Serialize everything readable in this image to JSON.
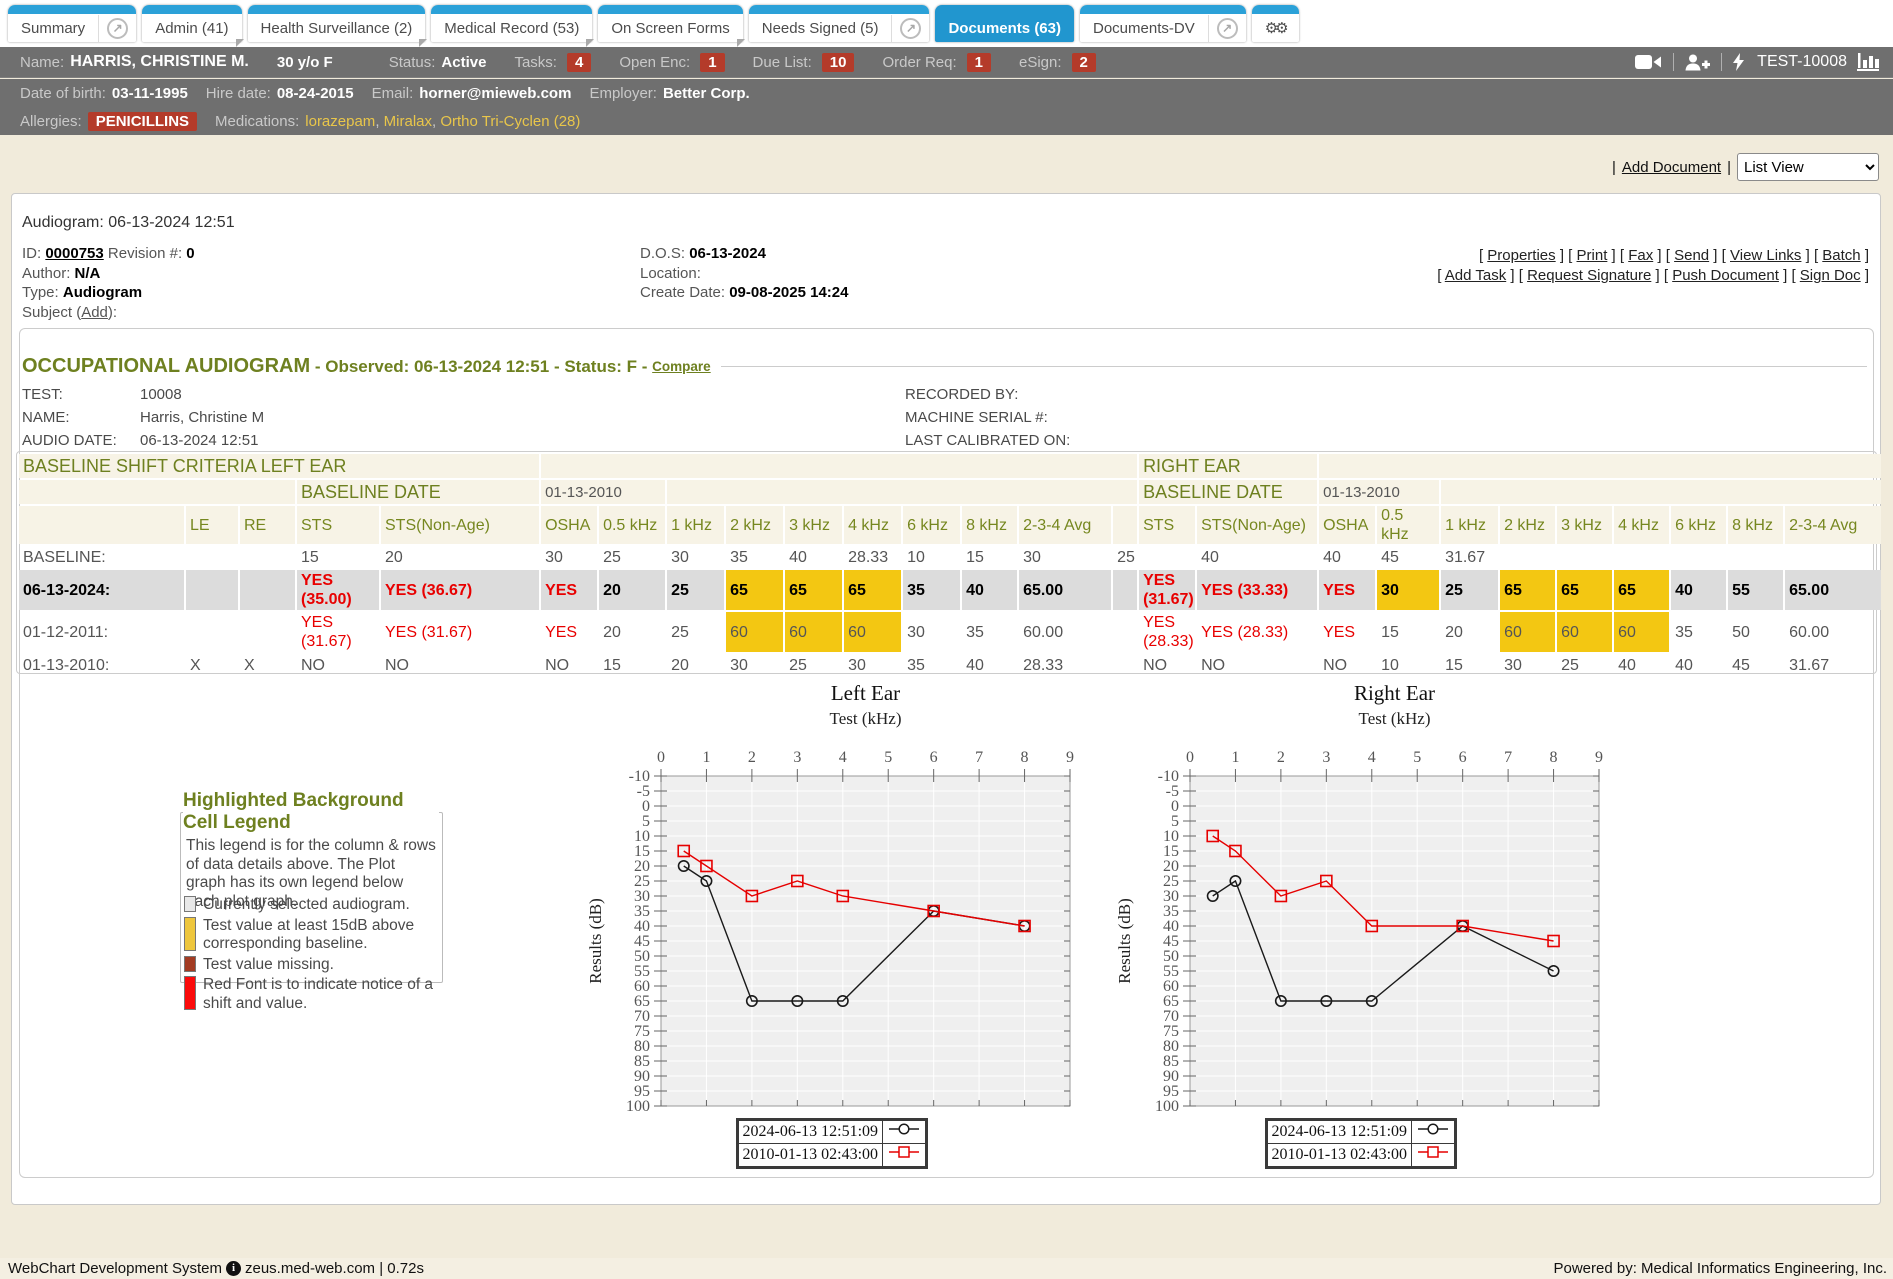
{
  "tabs": {
    "items": [
      {
        "label": "Summary",
        "popout": true,
        "fold": false,
        "selected": false
      },
      {
        "label": "Admin (41)",
        "popout": false,
        "fold": true,
        "selected": false
      },
      {
        "label": "Health Surveillance (2)",
        "popout": false,
        "fold": true,
        "selected": false
      },
      {
        "label": "Medical Record (53)",
        "popout": false,
        "fold": true,
        "selected": false
      },
      {
        "label": "On Screen Forms",
        "popout": false,
        "fold": true,
        "selected": false
      },
      {
        "label": "Needs Signed (5)",
        "popout": true,
        "fold": false,
        "selected": false
      },
      {
        "label": "Documents (63)",
        "popout": false,
        "fold": false,
        "selected": true
      },
      {
        "label": "Documents-DV",
        "popout": true,
        "fold": false,
        "selected": false
      }
    ]
  },
  "patient_bar": {
    "name_label": "Name:",
    "name": "HARRIS, CHRISTINE M.",
    "age_sex": "30 y/o F",
    "status_label": "Status:",
    "status": "Active",
    "counters": [
      {
        "label": "Tasks:",
        "value": "4"
      },
      {
        "label": "Open Enc:",
        "value": "1"
      },
      {
        "label": "Due List:",
        "value": "10"
      },
      {
        "label": "Order Req:",
        "value": "1"
      },
      {
        "label": "eSign:",
        "value": "2"
      }
    ],
    "patient_id": "TEST-10008",
    "dob_label": "Date of birth:",
    "dob": "03-11-1995",
    "hire_label": "Hire date:",
    "hire_date": "08-24-2015",
    "email_label": "Email:",
    "email": "horner@mieweb.com",
    "employer_label": "Employer:",
    "employer": "Better Corp.",
    "allergies_label": "Allergies:",
    "allergy": "PENICILLINS",
    "medications_label": "Medications:",
    "medications": [
      "lorazepam",
      "Miralax",
      "Ortho Tri-Cyclen (28)"
    ]
  },
  "toolbar": {
    "add_document": "Add Document",
    "view_select": "List View"
  },
  "document": {
    "title": "Audiogram: 06-13-2024 12:51",
    "id_label": "ID:",
    "id": "0000753",
    "revision_label": "Revision #:",
    "revision": "0",
    "author_label": "Author:",
    "author": "N/A",
    "type_label": "Type:",
    "type": "Audiogram",
    "subject_pre": "Subject (",
    "subject_add": "Add",
    "subject_post": "):",
    "dos_label": "D.O.S:",
    "dos": "06-13-2024",
    "location_label": "Location:",
    "create_label": "Create Date:",
    "create_date": "09-08-2025 14:24",
    "actions_row1": [
      "Properties",
      "Print",
      "Fax",
      "Send",
      "View Links",
      "Batch"
    ],
    "actions_row2": [
      "Add Task",
      "Request Signature",
      "Push Document",
      "Sign Doc"
    ]
  },
  "audiogram": {
    "heading_main": "OCCUPATIONAL AUDIOGRAM",
    "heading_rest": " - Observed: 06-13-2024 12:51 - Status: F - ",
    "compare": "Compare",
    "info": [
      {
        "label": "TEST:",
        "value": "10008"
      },
      {
        "label": "NAME:",
        "value": "Harris, Christine M"
      },
      {
        "label": "AUDIO DATE:",
        "value": "06-13-2024 12:51"
      }
    ],
    "info_right": [
      "RECORDED BY:",
      "MACHINE SERIAL #:",
      "LAST CALIBRATED ON:"
    ]
  },
  "shift_table": {
    "columns": [
      "",
      "LE",
      "RE",
      "STS",
      "STS(Non-Age)",
      "OSHA",
      "0.5 kHz",
      "1 kHz",
      "2 kHz",
      "3 kHz",
      "4 kHz",
      "6 kHz",
      "8 kHz",
      "2-3-4 Avg",
      "",
      "STS",
      "STS(Non-Age)",
      "OSHA",
      "0.5 kHz",
      "1 kHz",
      "2 kHz",
      "3 kHz",
      "4 kHz",
      "6 kHz",
      "8 kHz",
      "2-3-4 Avg"
    ],
    "section_row": [
      {
        "t": "BASELINE SHIFT CRITERIA LEFT EAR",
        "span": 5
      },
      {
        "t": "",
        "span": 10
      },
      {
        "t": "RIGHT EAR",
        "span": 2
      },
      {
        "t": "",
        "span": 9
      }
    ],
    "subsection_row": [
      {
        "t": "",
        "span": 3
      },
      {
        "t": "BASELINE DATE",
        "span": 2,
        "cls": "sec"
      },
      {
        "t": "01-13-2010",
        "span": 2,
        "cls": "val"
      },
      {
        "t": "",
        "span": 8
      },
      {
        "t": "BASELINE DATE",
        "span": 2,
        "cls": "sec"
      },
      {
        "t": "01-13-2010",
        "span": 2,
        "cls": "val"
      },
      {
        "t": "",
        "span": 7
      }
    ],
    "rows": [
      {
        "label": "BASELINE:",
        "selected": false,
        "cells": [
          "",
          "",
          "15",
          "20",
          "30",
          "25",
          "30",
          "35",
          "40",
          "28.33",
          "10",
          "15",
          "30",
          "25",
          "",
          "40",
          "40",
          "45",
          "31.67",
          "",
          "",
          "",
          "",
          "",
          ""
        ],
        "yellow": [],
        "red": []
      },
      {
        "label": "06-13-2024:",
        "selected": true,
        "cells": [
          "",
          "",
          "YES (35.00)",
          "YES (36.67)",
          "YES",
          "20",
          "25",
          "65",
          "65",
          "65",
          "35",
          "40",
          "65.00",
          "",
          "YES (31.67)",
          "YES (33.33)",
          "YES",
          "30",
          "25",
          "65",
          "65",
          "65",
          "40",
          "55",
          "65.00"
        ],
        "yellow": [
          7,
          8,
          9,
          17,
          19,
          20,
          21
        ],
        "red": [
          2,
          3,
          4,
          14,
          15,
          16
        ]
      },
      {
        "label": "01-12-2011:",
        "selected": false,
        "cells": [
          "",
          "",
          "YES (31.67)",
          "YES (31.67)",
          "YES",
          "20",
          "25",
          "60",
          "60",
          "60",
          "30",
          "35",
          "60.00",
          "",
          "YES (28.33)",
          "YES (28.33)",
          "YES",
          "15",
          "20",
          "60",
          "60",
          "60",
          "35",
          "50",
          "60.00"
        ],
        "yellow": [
          7,
          8,
          9,
          19,
          20,
          21
        ],
        "red": [
          2,
          3,
          4,
          14,
          15,
          16
        ]
      },
      {
        "label": "01-13-2010:",
        "selected": false,
        "cells": [
          "X",
          "X",
          "NO",
          "NO",
          "NO",
          "15",
          "20",
          "30",
          "25",
          "30",
          "35",
          "40",
          "28.33",
          "",
          "NO",
          "NO",
          "NO",
          "10",
          "15",
          "30",
          "25",
          "40",
          "40",
          "45",
          "31.67"
        ],
        "yellow": [],
        "red": []
      }
    ]
  },
  "cell_legend": {
    "title": "Highlighted Background Cell Legend",
    "description": "This legend is for the column & rows of data details above. The Plot graph has its own legend below each plot graph.",
    "items": [
      {
        "color": "#e8e8e8",
        "text": "Currently selected audiogram.",
        "lines": 1
      },
      {
        "color": "#eec63c",
        "text": "Test value at least 15dB above corresponding baseline.",
        "lines": 2
      },
      {
        "color": "#a33b22",
        "text": "Test value missing.",
        "lines": 1
      },
      {
        "color": "#fb0b0b",
        "text": "Red Font is to indicate notice of a shift and value.",
        "lines": 2
      }
    ]
  },
  "chart_data": [
    {
      "type": "line",
      "title": "Left Ear",
      "xlabel": "Test (kHz)",
      "ylabel": "Results (dB)",
      "xlim": [
        0,
        9
      ],
      "ylim": [
        -10,
        100
      ],
      "y_inverted": true,
      "ytick_step": 5,
      "series": [
        {
          "name": "2024-06-13 12:51:09",
          "color": "#1a1a1a",
          "marker": "circle",
          "x": [
            0.5,
            1,
            2,
            3,
            4,
            6,
            8
          ],
          "values": [
            20,
            25,
            65,
            65,
            65,
            35,
            40
          ]
        },
        {
          "name": "2010-01-13 02:43:00",
          "color": "#e60000",
          "marker": "square",
          "x": [
            0.5,
            1,
            2,
            3,
            4,
            6,
            8
          ],
          "values": [
            15,
            20,
            30,
            25,
            30,
            35,
            40
          ]
        }
      ]
    },
    {
      "type": "line",
      "title": "Right Ear",
      "xlabel": "Test (kHz)",
      "ylabel": "Results (dB)",
      "xlim": [
        0,
        9
      ],
      "ylim": [
        -10,
        100
      ],
      "y_inverted": true,
      "ytick_step": 5,
      "series": [
        {
          "name": "2024-06-13 12:51:09",
          "color": "#1a1a1a",
          "marker": "circle",
          "x": [
            0.5,
            1,
            2,
            3,
            4,
            6,
            8
          ],
          "values": [
            30,
            25,
            65,
            65,
            65,
            40,
            55
          ]
        },
        {
          "name": "2010-01-13 02:43:00",
          "color": "#e60000",
          "marker": "square",
          "x": [
            0.5,
            1,
            2,
            3,
            4,
            6,
            8
          ],
          "values": [
            10,
            15,
            30,
            25,
            40,
            40,
            45
          ]
        }
      ]
    }
  ],
  "footer": {
    "left": "WebChart Development System",
    "host": "zeus.med-web.com | 0.72s",
    "right": "Powered by: Medical Informatics Engineering, Inc."
  }
}
